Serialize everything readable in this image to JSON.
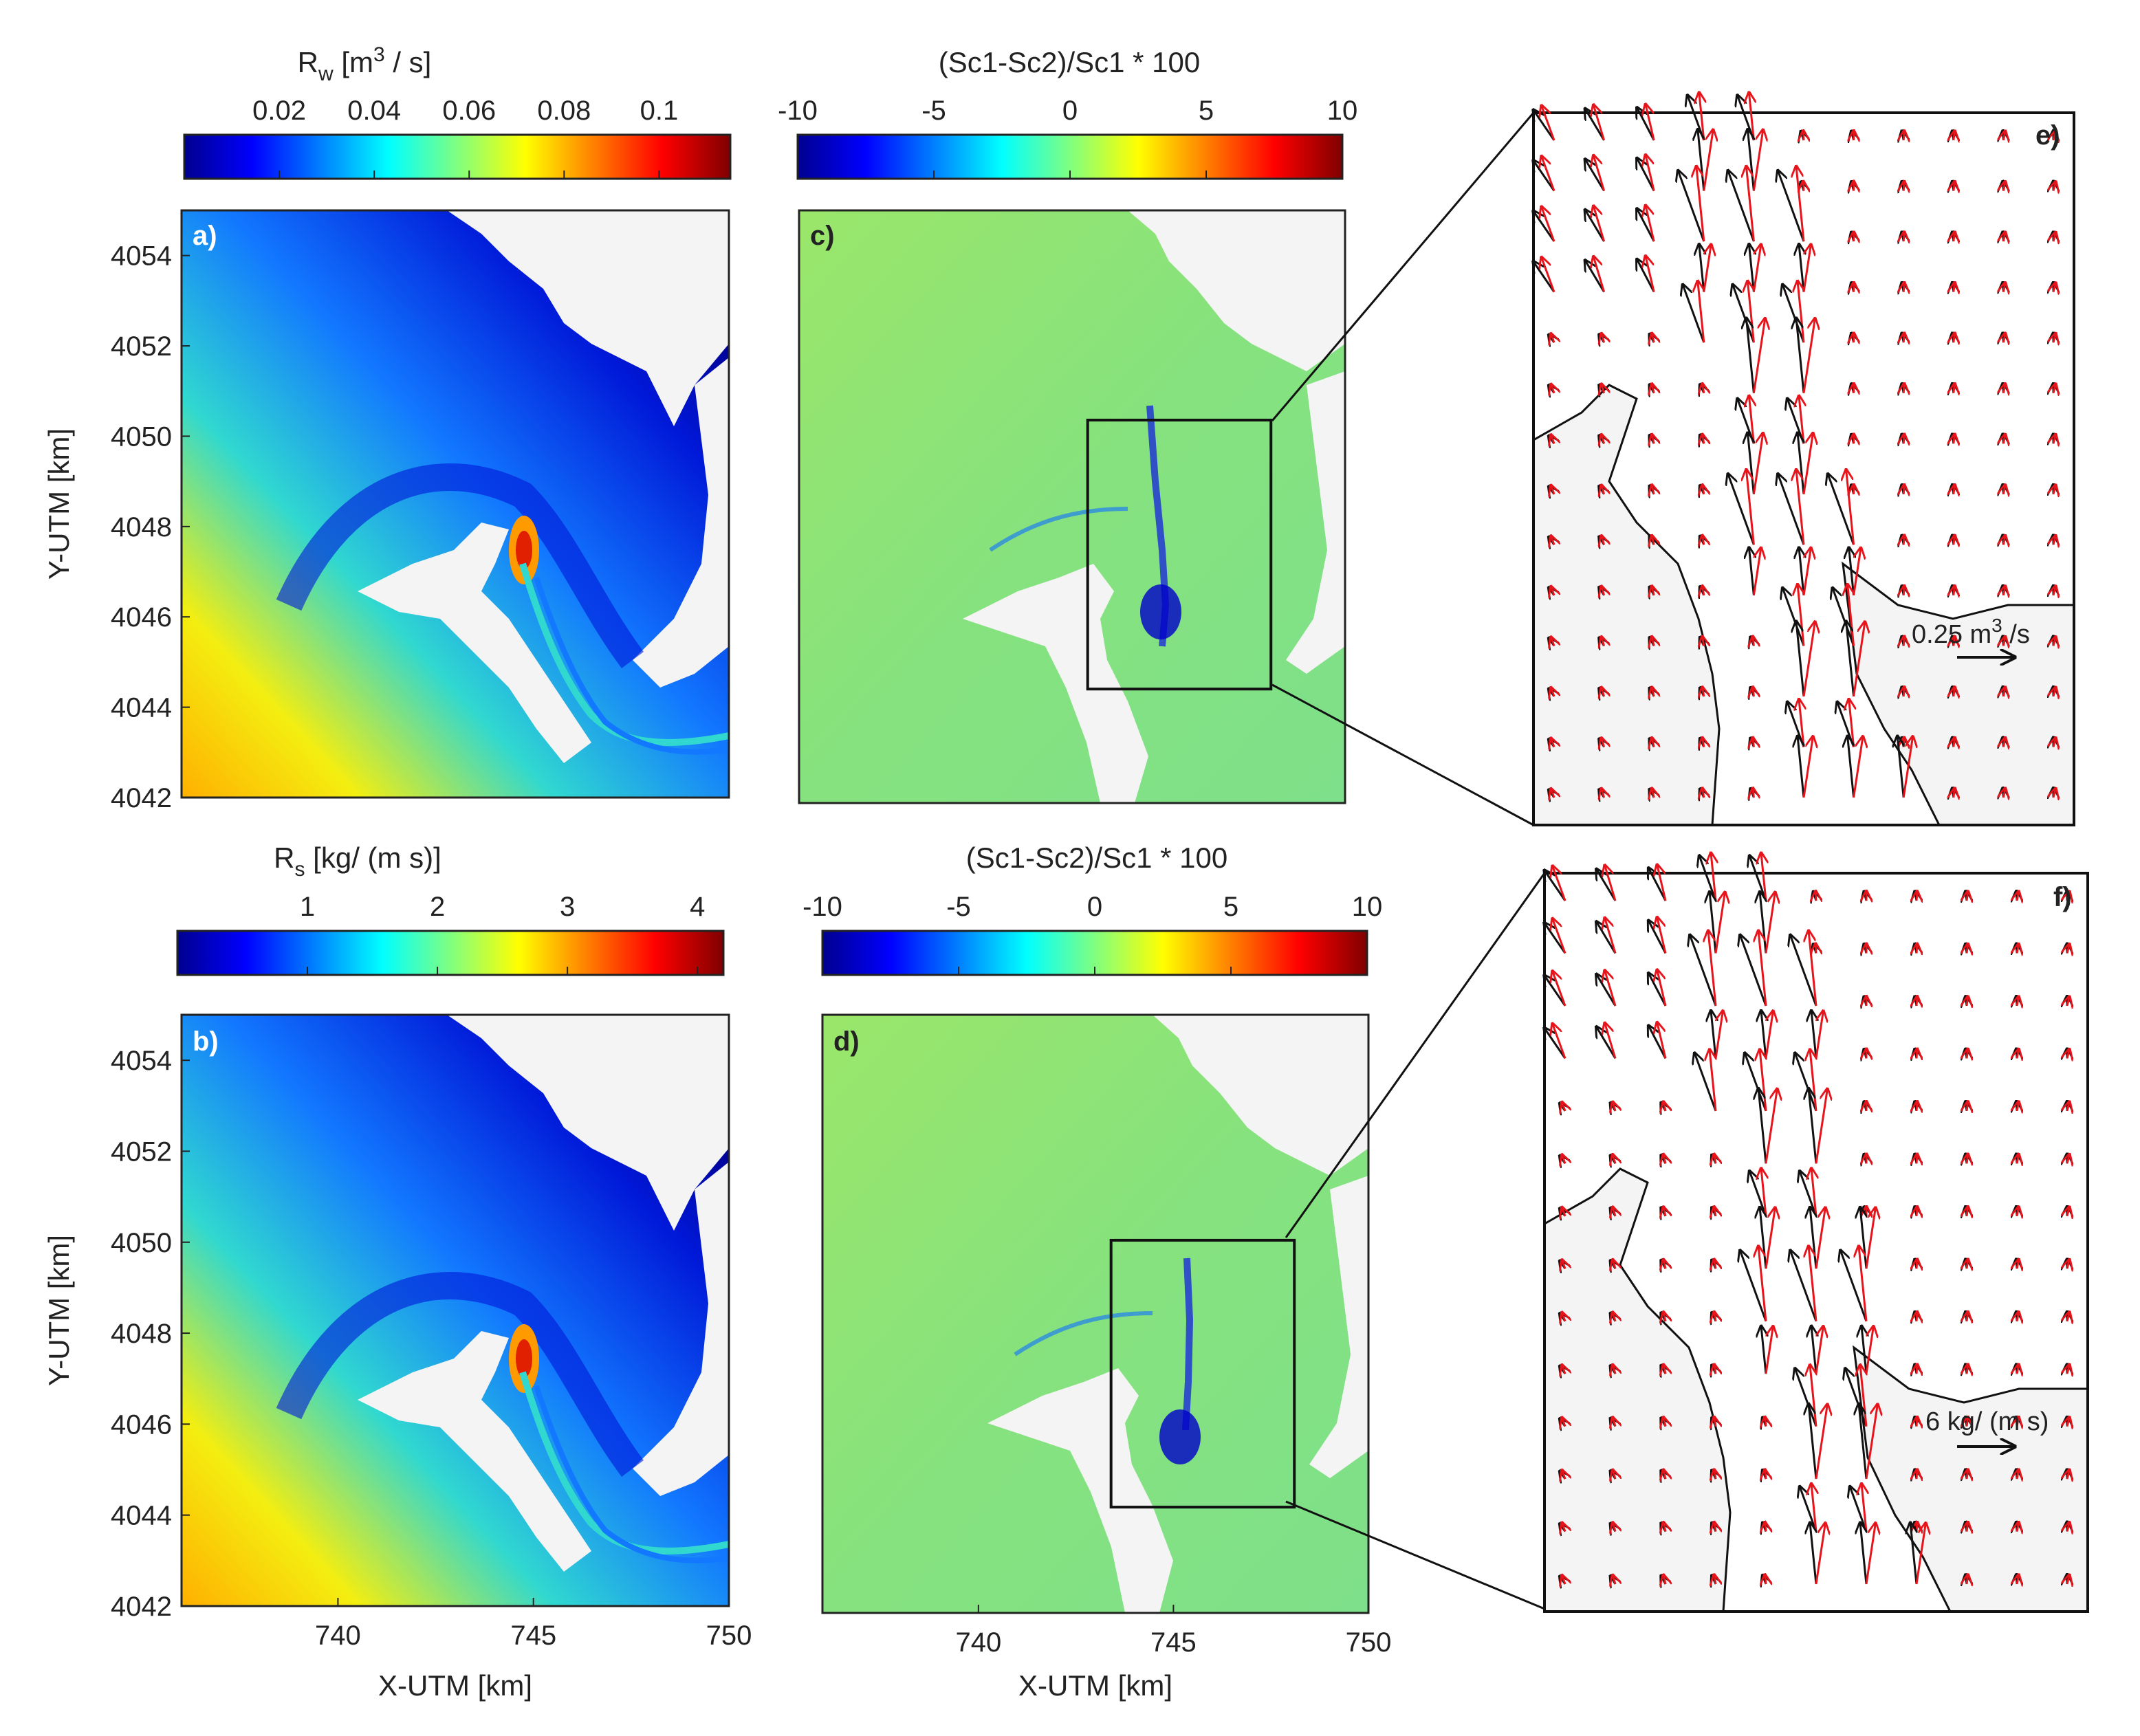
{
  "colors": {
    "cmap": [
      "#00008f",
      "#0000ff",
      "#00ffff",
      "#ffff00",
      "#ff0000",
      "#800000"
    ],
    "land": "#f4f4f4",
    "water_base": "#8de474",
    "vector_a": "#111111",
    "vector_b": "#e8141b"
  },
  "chart_data": [
    {
      "type": "heatmap",
      "panel": "a)",
      "colorbar": {
        "label_main": "R",
        "label_sub": "w",
        "label_unit": " [m",
        "label_sup": "3",
        "label_end": " / s]",
        "range": [
          0,
          0.115
        ],
        "ticks": [
          0.02,
          0.04,
          0.06,
          0.08,
          0.1
        ],
        "tick_labels": [
          "0.02",
          "0.04",
          "0.06",
          "0.08",
          "0.1"
        ]
      },
      "ylabel": "Y-UTM [km]",
      "xlim": [
        736,
        750
      ],
      "ylim": [
        4042,
        4055
      ],
      "yticks": [
        4042,
        4044,
        4046,
        4048,
        4050,
        4052,
        4054
      ],
      "ytick_labels": [
        "4042",
        "4044",
        "4046",
        "4048",
        "4050",
        "4052",
        "4054"
      ]
    },
    {
      "type": "heatmap",
      "panel": "b)",
      "colorbar": {
        "label_main": "R",
        "label_sub": "s",
        "label_unit": " [kg/ (m s)]",
        "range": [
          0,
          4.2
        ],
        "ticks": [
          1,
          2,
          3,
          4
        ],
        "tick_labels": [
          "1",
          "2",
          "3",
          "4"
        ]
      },
      "xlabel": "X-UTM [km]",
      "ylabel": "Y-UTM [km]",
      "xlim": [
        736,
        750
      ],
      "ylim": [
        4042,
        4055
      ],
      "xticks": [
        740,
        745,
        750
      ],
      "xtick_labels": [
        "740",
        "745",
        "750"
      ],
      "yticks": [
        4042,
        4044,
        4046,
        4048,
        4050,
        4052,
        4054
      ],
      "ytick_labels": [
        "4042",
        "4044",
        "4046",
        "4048",
        "4050",
        "4052",
        "4054"
      ]
    },
    {
      "type": "heatmap",
      "panel": "c)",
      "colorbar": {
        "label": "(Sc1-Sc2)/Sc1 * 100",
        "range": [
          -10,
          10
        ],
        "ticks": [
          -10,
          -5,
          0,
          5,
          10
        ],
        "tick_labels": [
          "-10",
          "-5",
          "0",
          "5",
          "10"
        ]
      },
      "xlim": [
        736,
        750
      ],
      "ylim": [
        4042,
        4055
      ],
      "zoom_box": {
        "x": [
          743.4,
          748.1
        ],
        "y": [
          4044.5,
          4050.4
        ]
      }
    },
    {
      "type": "heatmap",
      "panel": "d)",
      "colorbar": {
        "label": "(Sc1-Sc2)/Sc1 * 100",
        "range": [
          -10,
          10
        ],
        "ticks": [
          -10,
          -5,
          0,
          5,
          10
        ],
        "tick_labels": [
          "-10",
          "-5",
          "0",
          "5",
          "10"
        ]
      },
      "xlabel": "X-UTM [km]",
      "xlim": [
        736,
        750
      ],
      "ylim": [
        4042,
        4055
      ],
      "xticks": [
        740,
        745,
        750
      ],
      "xtick_labels": [
        "740",
        "745",
        "750"
      ],
      "zoom_box": {
        "x": [
          743.4,
          748.1
        ],
        "y": [
          4044.3,
          4050.1
        ]
      }
    },
    {
      "type": "scatter",
      "panel": "e)",
      "scale_label_main": "0.25 m",
      "scale_label_sup": "3",
      "scale_label_end": " /s"
    },
    {
      "type": "scatter",
      "panel": "f)",
      "scale_label": "6 kg/ (m s)"
    }
  ]
}
